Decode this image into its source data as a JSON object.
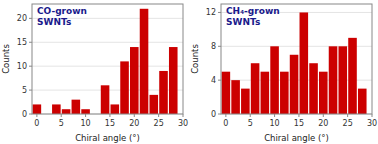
{
  "chart_data": [
    {
      "type": "bar",
      "title": "CO-grown\nSWNTs",
      "x": [
        0,
        2,
        4,
        6,
        8,
        10,
        12,
        14,
        16,
        18,
        20,
        22,
        24,
        26,
        28
      ],
      "values": [
        2,
        0,
        2,
        1,
        3,
        1,
        0,
        6,
        2,
        11,
        14,
        22,
        4,
        9,
        14
      ],
      "color": "#CC0000",
      "xlabel": "Chiral angle (°)",
      "ylabel": "Counts",
      "xlim": [
        -1,
        30
      ],
      "xticks": [
        0,
        5,
        10,
        15,
        20,
        25,
        30
      ],
      "ylim": [
        0,
        23
      ],
      "yticks": [
        0,
        5,
        10,
        15,
        20
      ]
    },
    {
      "type": "bar",
      "title": "CH₄-grown\nSWNTs",
      "x": [
        0,
        2,
        4,
        6,
        8,
        10,
        12,
        14,
        16,
        18,
        20,
        22,
        24,
        26,
        28
      ],
      "values": [
        5,
        4,
        3,
        6,
        5,
        8,
        5,
        7,
        12,
        6,
        5,
        8,
        8,
        9,
        3
      ],
      "color": "#CC0000",
      "xlabel": "Chiral angle (°)",
      "ylabel": "Counts",
      "xlim": [
        -1,
        30
      ],
      "xticks": [
        0,
        5,
        10,
        15,
        20,
        25,
        30
      ],
      "ylim": [
        0,
        13
      ],
      "yticks": [
        0,
        4,
        8,
        12
      ]
    }
  ]
}
